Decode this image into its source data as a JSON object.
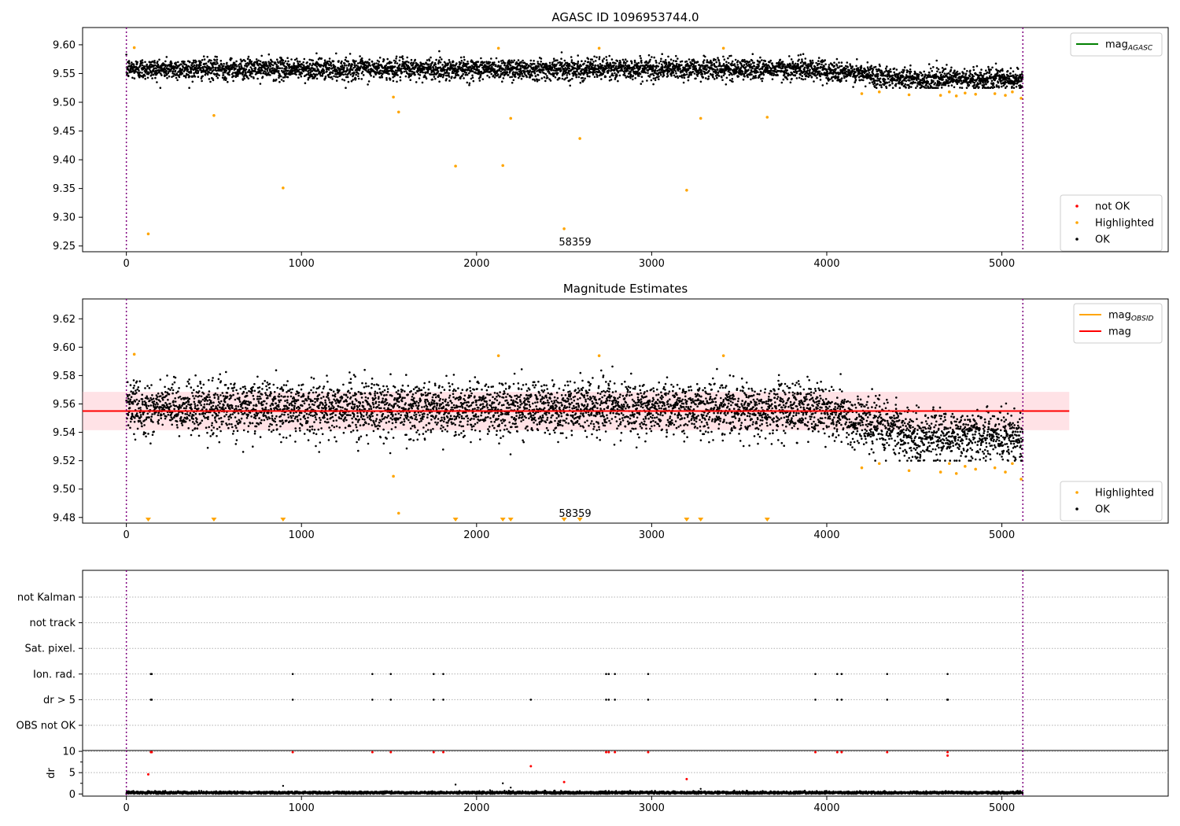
{
  "chart_data": [
    {
      "type": "scatter",
      "title": "AGASC ID 1096953744.0",
      "xlim": [
        -250,
        5950
      ],
      "ylim": [
        9.24,
        9.63
      ],
      "xticks": [
        0,
        1000,
        2000,
        3000,
        4000,
        5000
      ],
      "yticks": [
        "9.25",
        "9.30",
        "9.35",
        "9.40",
        "9.45",
        "9.50",
        "9.55",
        "9.60"
      ],
      "obs_boundaries": [
        0,
        5120
      ],
      "annotation": {
        "text": "58359",
        "x": 2550,
        "y": 9.25
      },
      "ok_series": {
        "name": "OK",
        "n_points": 5120,
        "mean": 9.558,
        "spread": 0.009,
        "late_mean": 9.54
      },
      "highlighted": {
        "name": "Highlighted",
        "x": [
          45,
          125,
          500,
          895,
          1525,
          1555,
          1880,
          2125,
          2150,
          2195,
          2500,
          2590,
          2700,
          3200,
          3280,
          3410,
          3660,
          4200,
          4300,
          4470,
          4650,
          4700,
          4740,
          4790,
          4850,
          4960,
          5020,
          5060,
          5110
        ],
        "y": [
          9.595,
          9.271,
          9.477,
          9.351,
          9.509,
          9.483,
          9.389,
          9.594,
          9.39,
          9.472,
          9.28,
          9.437,
          9.594,
          9.347,
          9.472,
          9.594,
          9.474,
          9.515,
          9.518,
          9.513,
          9.512,
          9.518,
          9.511,
          9.516,
          9.514,
          9.515,
          9.512,
          9.518,
          9.507
        ]
      },
      "legends": [
        {
          "entries": [
            {
              "label": "mag",
              "sub": "AGASC",
              "color": "#008000",
              "kind": "line"
            }
          ],
          "loc": "upper right"
        },
        {
          "entries": [
            {
              "label": "not OK",
              "color": "#ff0000",
              "kind": "dot"
            },
            {
              "label": "Highlighted",
              "color": "#ffa500",
              "kind": "dot"
            },
            {
              "label": "OK",
              "color": "#000000",
              "kind": "dot"
            }
          ],
          "loc": "lower right"
        }
      ]
    },
    {
      "type": "scatter",
      "title": "Magnitude Estimates",
      "xlim": [
        -250,
        5950
      ],
      "ylim": [
        9.476,
        9.634
      ],
      "xticks": [
        0,
        1000,
        2000,
        3000,
        4000,
        5000
      ],
      "yticks": [
        "9.48",
        "9.50",
        "9.52",
        "9.54",
        "9.56",
        "9.58",
        "9.60",
        "9.62"
      ],
      "obs_boundaries": [
        0,
        5120
      ],
      "annotation": {
        "text": "58359",
        "x": 2550,
        "y": 9.481
      },
      "mag_line": {
        "value": 9.555,
        "color": "#ff0000",
        "band": [
          9.5415,
          9.5685
        ],
        "x_end": 5385
      },
      "ok_series": {
        "name": "OK",
        "n_points": 5120,
        "mean": 9.557,
        "spread": 0.009,
        "late_mean": 9.538
      },
      "highlighted": {
        "name": "Highlighted",
        "x": [
          45,
          1525,
          1555,
          2125,
          2700,
          3410,
          4200,
          4300,
          4470,
          4650,
          4700,
          4740,
          4790,
          4850,
          4960,
          5020,
          5060,
          5110
        ],
        "y": [
          9.595,
          9.509,
          9.483,
          9.594,
          9.594,
          9.594,
          9.515,
          9.518,
          9.513,
          9.512,
          9.518,
          9.511,
          9.516,
          9.514,
          9.515,
          9.512,
          9.518,
          9.507
        ]
      },
      "off_scale_markers_x": [
        125,
        500,
        895,
        1880,
        2150,
        2195,
        2500,
        2590,
        3200,
        3280,
        3660
      ],
      "legends": [
        {
          "entries": [
            {
              "label": "mag",
              "sub": "OBSID",
              "color": "#ffa500",
              "kind": "line"
            },
            {
              "label": "mag",
              "color": "#ff0000",
              "kind": "line"
            }
          ],
          "loc": "upper right"
        },
        {
          "entries": [
            {
              "label": "Highlighted",
              "color": "#ffa500",
              "kind": "dot"
            },
            {
              "label": "OK",
              "color": "#000000",
              "kind": "dot"
            }
          ],
          "loc": "lower right"
        }
      ]
    },
    {
      "type": "scatter",
      "xlim": [
        -250,
        5950
      ],
      "categories": [
        "not Kalman",
        "not track",
        "Sat. pixel.",
        "Ion. rad.",
        "dr > 5",
        "OBS not OK"
      ],
      "flag_events": {
        "Ion. rad.": [
          140,
          145,
          950,
          1405,
          1510,
          1755,
          1810,
          2740,
          2755,
          2790,
          2980,
          3935,
          4060,
          4085,
          4345,
          4690
        ],
        "dr > 5": [
          140,
          145,
          950,
          1405,
          1510,
          1755,
          1810,
          2310,
          2740,
          2755,
          2790,
          2980,
          3935,
          4060,
          4085,
          4345,
          4688,
          4692
        ]
      },
      "obs_boundaries": [
        0,
        5120
      ]
    },
    {
      "type": "scatter",
      "ylabel": "dr",
      "xlim": [
        -250,
        5950
      ],
      "ylim": [
        -0.5,
        10.2
      ],
      "xticks": [
        0,
        1000,
        2000,
        3000,
        4000,
        5000
      ],
      "yticks": [
        "0",
        "5",
        "10"
      ],
      "obs_boundaries": [
        0,
        5120
      ],
      "red_points": {
        "x": [
          125,
          140,
          145,
          950,
          1405,
          1510,
          1755,
          1810,
          2310,
          2500,
          2740,
          2755,
          2790,
          2980,
          3200,
          3935,
          4060,
          4085,
          4345,
          4690,
          4690
        ],
        "y": [
          4.6,
          9.8,
          9.8,
          9.8,
          9.8,
          9.8,
          9.8,
          9.8,
          6.5,
          2.8,
          9.8,
          9.8,
          9.8,
          9.8,
          3.5,
          9.8,
          9.8,
          9.8,
          9.8,
          9.8,
          9.0
        ]
      },
      "black_outliers": {
        "x": [
          895,
          1880,
          2150,
          2195,
          3280
        ],
        "y": [
          1.9,
          2.2,
          2.5,
          1.5,
          1.2
        ]
      },
      "baseline": {
        "n_points": 5120,
        "mean": 0.3,
        "spread": 0.15
      }
    }
  ]
}
